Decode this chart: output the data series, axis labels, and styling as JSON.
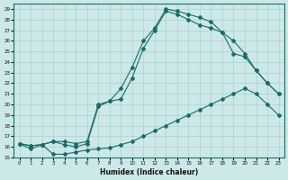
{
  "xlabel": "Humidex (Indice chaleur)",
  "background_color": "#cce8e8",
  "grid_color": "#aad0d0",
  "line_color": "#1a6b6b",
  "xlim": [
    -0.5,
    23.5
  ],
  "ylim": [
    15,
    29.5
  ],
  "xticks": [
    0,
    1,
    2,
    3,
    4,
    5,
    6,
    7,
    8,
    9,
    10,
    11,
    12,
    13,
    14,
    15,
    16,
    17,
    18,
    19,
    20,
    21,
    22,
    23
  ],
  "yticks": [
    15,
    16,
    17,
    18,
    19,
    20,
    21,
    22,
    23,
    24,
    25,
    26,
    27,
    28,
    29
  ],
  "line1_x": [
    0,
    1,
    2,
    3,
    4,
    5,
    6,
    7,
    8,
    9,
    10,
    11,
    12,
    13,
    14,
    15,
    16,
    17,
    18,
    19,
    20,
    21,
    22,
    23
  ],
  "line1_y": [
    16.3,
    15.8,
    16.2,
    15.3,
    15.3,
    15.5,
    15.7,
    15.8,
    15.9,
    16.2,
    16.5,
    17.0,
    17.5,
    18.0,
    18.5,
    19.0,
    19.5,
    20.0,
    20.5,
    21.0,
    21.5,
    21.0,
    20.0,
    19.0
  ],
  "line2_x": [
    0,
    1,
    2,
    3,
    4,
    5,
    6,
    7,
    8,
    9,
    10,
    11,
    12,
    13,
    14,
    15,
    16,
    17,
    18,
    19,
    20,
    21,
    22,
    23
  ],
  "line2_y": [
    16.3,
    16.1,
    16.2,
    16.5,
    16.2,
    16.0,
    16.3,
    19.8,
    20.3,
    21.5,
    23.5,
    26.0,
    27.2,
    29.0,
    28.8,
    28.5,
    28.2,
    27.8,
    26.8,
    26.0,
    24.8,
    23.2,
    22.0,
    21.0
  ],
  "line3_x": [
    0,
    1,
    2,
    3,
    4,
    5,
    6,
    7,
    8,
    9,
    10,
    11,
    12,
    13,
    14,
    15,
    16,
    17,
    18,
    19,
    20,
    21,
    22,
    23
  ],
  "line3_y": [
    16.3,
    16.1,
    16.2,
    16.5,
    16.5,
    16.3,
    16.5,
    20.0,
    20.3,
    20.5,
    22.5,
    25.3,
    27.0,
    28.8,
    28.5,
    28.0,
    27.5,
    27.2,
    26.8,
    24.8,
    24.5,
    23.2,
    22.0,
    21.0
  ]
}
